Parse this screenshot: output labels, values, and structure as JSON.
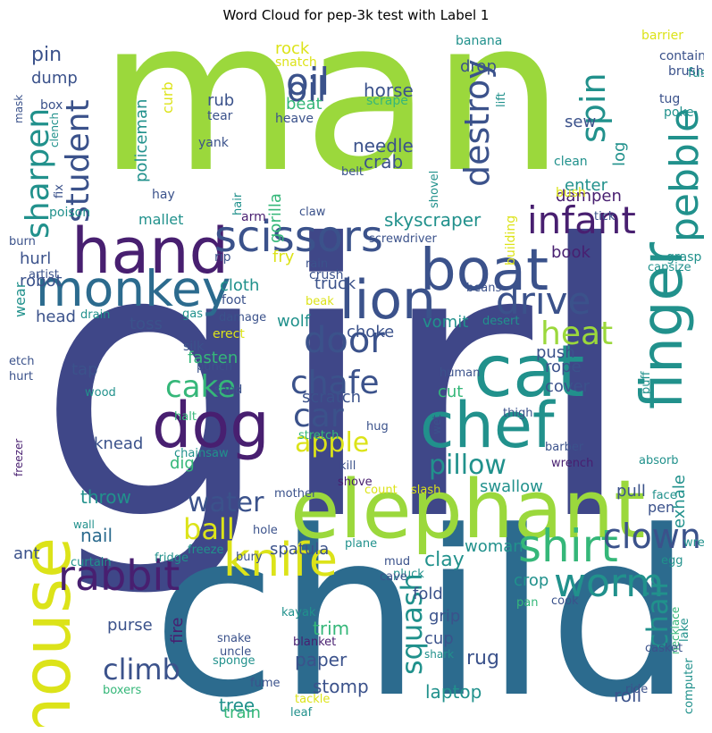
{
  "chart_data": {
    "type": "wordcloud",
    "title": "Word Cloud for pep-3k test with Label 1",
    "colors": {
      "lime": "#9bd83c",
      "indigo": "#3f4788",
      "blue": "#2c6b8e",
      "navy": "#3b528b",
      "teal": "#21918c",
      "green": "#35b779",
      "purple": "#481f70",
      "yellow": "#dce319",
      "light": "#6ece58"
    },
    "words": [
      {
        "text": "girl"
      },
      {
        "text": "man"
      },
      {
        "text": "child"
      },
      {
        "text": "elephant"
      },
      {
        "text": "hand"
      },
      {
        "text": "boat"
      },
      {
        "text": "cat"
      },
      {
        "text": "monkey"
      },
      {
        "text": "lion"
      },
      {
        "text": "chef"
      },
      {
        "text": "dog"
      },
      {
        "text": "house"
      },
      {
        "text": "scissors"
      },
      {
        "text": "finger"
      },
      {
        "text": "knife"
      },
      {
        "text": "rabbit"
      },
      {
        "text": "shirt"
      },
      {
        "text": "infant"
      },
      {
        "text": "oil"
      },
      {
        "text": "drive"
      },
      {
        "text": "worm"
      },
      {
        "text": "pebble"
      },
      {
        "text": "door"
      },
      {
        "text": "student"
      },
      {
        "text": "clown"
      },
      {
        "text": "spin"
      },
      {
        "text": "destroy"
      },
      {
        "text": "chafe"
      },
      {
        "text": "heat"
      },
      {
        "text": "car"
      },
      {
        "text": "sharpen"
      },
      {
        "text": "cake"
      },
      {
        "text": "climb"
      },
      {
        "text": "pillow"
      },
      {
        "text": "water"
      },
      {
        "text": "apple"
      },
      {
        "text": "ball"
      },
      {
        "text": "chair"
      },
      {
        "text": "squash"
      },
      {
        "text": "skyscraper"
      },
      {
        "text": "paper"
      },
      {
        "text": "rug"
      },
      {
        "text": "clay"
      },
      {
        "text": "nail"
      },
      {
        "text": "throw"
      },
      {
        "text": "trim"
      },
      {
        "text": "tree"
      },
      {
        "text": "stomp"
      },
      {
        "text": "laptop"
      },
      {
        "text": "roll"
      },
      {
        "text": "crab"
      },
      {
        "text": "needle"
      },
      {
        "text": "horse"
      },
      {
        "text": "oil"
      },
      {
        "text": "sew"
      },
      {
        "text": "log"
      },
      {
        "text": "enter"
      },
      {
        "text": "dampen"
      },
      {
        "text": "pin"
      },
      {
        "text": "dump"
      },
      {
        "text": "rock"
      },
      {
        "text": "drop"
      },
      {
        "text": "beat"
      },
      {
        "text": "rub"
      },
      {
        "text": "tear"
      },
      {
        "text": "curb"
      },
      {
        "text": "policeman"
      },
      {
        "text": "mallet"
      },
      {
        "text": "hurl"
      },
      {
        "text": "robot"
      },
      {
        "text": "cloth"
      },
      {
        "text": "fry"
      },
      {
        "text": "truck"
      },
      {
        "text": "book"
      },
      {
        "text": "wolf"
      },
      {
        "text": "choke"
      },
      {
        "text": "vomit"
      },
      {
        "text": "push"
      },
      {
        "text": "toss"
      },
      {
        "text": "head"
      },
      {
        "text": "wear"
      },
      {
        "text": "tap"
      },
      {
        "text": "fasten"
      },
      {
        "text": "scratch"
      },
      {
        "text": "cut"
      },
      {
        "text": "rope"
      },
      {
        "text": "cover"
      },
      {
        "text": "knead"
      },
      {
        "text": "dig"
      },
      {
        "text": "swallow"
      },
      {
        "text": "pull"
      },
      {
        "text": "pen"
      },
      {
        "text": "exhale"
      },
      {
        "text": "spatula"
      },
      {
        "text": "woman"
      },
      {
        "text": "fold"
      },
      {
        "text": "grip"
      },
      {
        "text": "cup"
      },
      {
        "text": "crop"
      },
      {
        "text": "purse"
      },
      {
        "text": "ant"
      },
      {
        "text": "fire"
      },
      {
        "text": "train"
      },
      {
        "text": "gorilla"
      },
      {
        "text": "banana"
      },
      {
        "text": "barrier"
      },
      {
        "text": "contain"
      },
      {
        "text": "brush"
      },
      {
        "text": "fuse"
      },
      {
        "text": "tug"
      },
      {
        "text": "poke"
      },
      {
        "text": "lift"
      },
      {
        "text": "scrape"
      },
      {
        "text": "snatch"
      },
      {
        "text": "clean"
      },
      {
        "text": "bush"
      },
      {
        "text": "building"
      },
      {
        "text": "shovel"
      },
      {
        "text": "tick"
      },
      {
        "text": "grasp"
      },
      {
        "text": "capsize"
      },
      {
        "text": "heave"
      },
      {
        "text": "yank"
      },
      {
        "text": "hay"
      },
      {
        "text": "poison"
      },
      {
        "text": "fix"
      },
      {
        "text": "clench"
      },
      {
        "text": "box"
      },
      {
        "text": "mask"
      },
      {
        "text": "burn"
      },
      {
        "text": "artist"
      },
      {
        "text": "hair"
      },
      {
        "text": "belt"
      },
      {
        "text": "claw"
      },
      {
        "text": "arm"
      },
      {
        "text": "rip"
      },
      {
        "text": "screwdriver"
      },
      {
        "text": "rain"
      },
      {
        "text": "crush"
      },
      {
        "text": "beak"
      },
      {
        "text": "beans"
      },
      {
        "text": "foot"
      },
      {
        "text": "gas"
      },
      {
        "text": "damage"
      },
      {
        "text": "drain"
      },
      {
        "text": "erect"
      },
      {
        "text": "silk"
      },
      {
        "text": "punch"
      },
      {
        "text": "sand"
      },
      {
        "text": "etch"
      },
      {
        "text": "hurt"
      },
      {
        "text": "wood"
      },
      {
        "text": "halt"
      },
      {
        "text": "desert"
      },
      {
        "text": "human"
      },
      {
        "text": "puff"
      },
      {
        "text": "wet"
      },
      {
        "text": "thigh"
      },
      {
        "text": "hug"
      },
      {
        "text": "stretch"
      },
      {
        "text": "chainsaw"
      },
      {
        "text": "kill"
      },
      {
        "text": "shove"
      },
      {
        "text": "barber"
      },
      {
        "text": "wrench"
      },
      {
        "text": "absorb"
      },
      {
        "text": "freezer"
      },
      {
        "text": "mother"
      },
      {
        "text": "count"
      },
      {
        "text": "slash"
      },
      {
        "text": "face"
      },
      {
        "text": "wall"
      },
      {
        "text": "hole"
      },
      {
        "text": "freeze"
      },
      {
        "text": "fridge"
      },
      {
        "text": "curtain"
      },
      {
        "text": "bury"
      },
      {
        "text": "plane"
      },
      {
        "text": "mud"
      },
      {
        "text": "pluck"
      },
      {
        "text": "wrestler"
      },
      {
        "text": "egg"
      },
      {
        "text": "necklace"
      },
      {
        "text": "lake"
      },
      {
        "text": "cave"
      },
      {
        "text": "pan"
      },
      {
        "text": "cook"
      },
      {
        "text": "kayak"
      },
      {
        "text": "snake"
      },
      {
        "text": "uncle"
      },
      {
        "text": "blanket"
      },
      {
        "text": "sponge"
      },
      {
        "text": "casket"
      },
      {
        "text": "shark"
      },
      {
        "text": "computer"
      },
      {
        "text": "fume"
      },
      {
        "text": "tackle"
      },
      {
        "text": "ride"
      },
      {
        "text": "boxers"
      },
      {
        "text": "leaf"
      }
    ]
  }
}
